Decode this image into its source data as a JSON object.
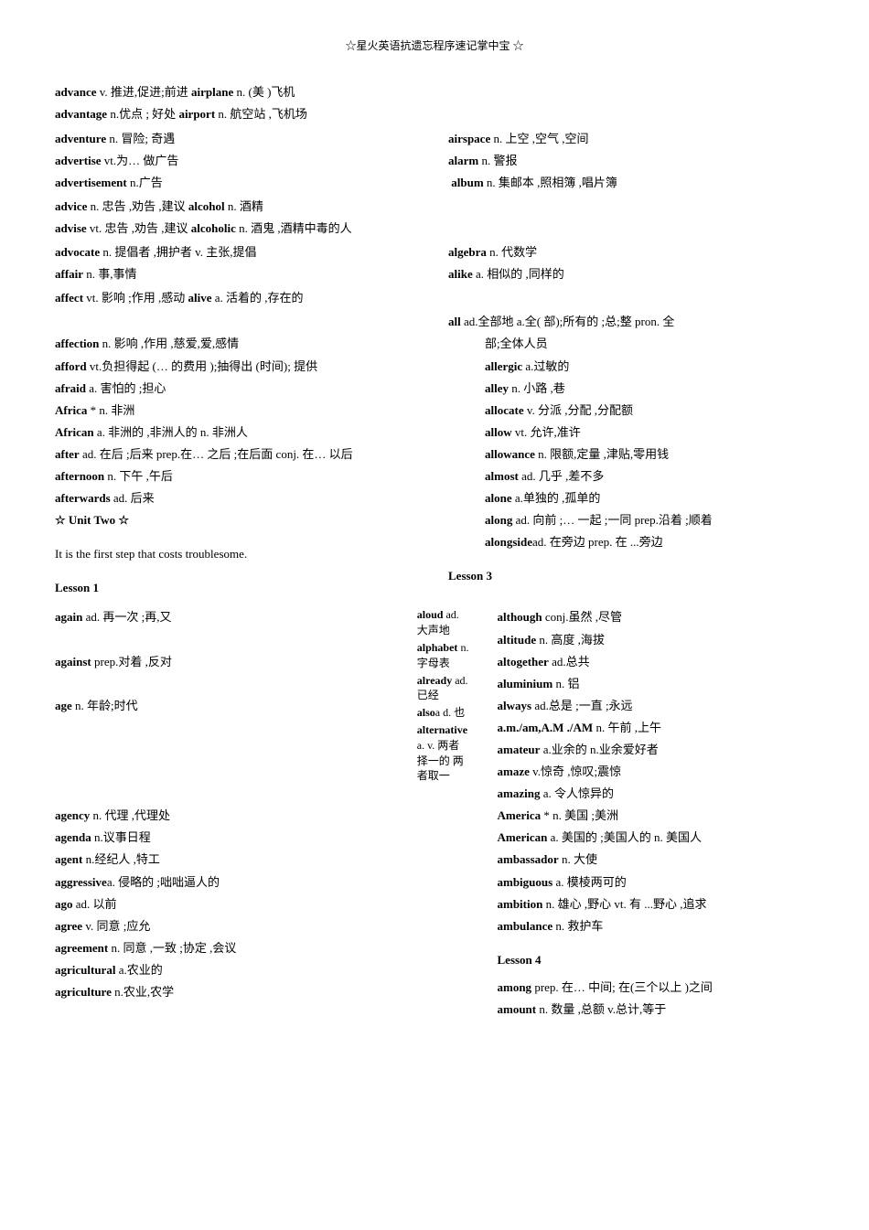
{
  "header": "☆星火英语抗遗忘程序速记掌中宝    ☆",
  "topEntries": [
    {
      "word": "advance",
      "def": " v. 推进,促进;前进 ",
      "word2": "airplane",
      "def2": " n. (美 )飞机"
    },
    {
      "word": "advantage",
      "def": " n.优点 ;  好处 ",
      "word2": "airport",
      "def2": "  n. 航空站 ,飞机场"
    }
  ],
  "leftCol1": [
    {
      "word": "adventure",
      "def": " n. 冒险; 奇遇"
    },
    {
      "word": "advertise",
      "def": " vt.为… 做广告"
    },
    {
      "word": "advertisement",
      "def": " n.广告"
    }
  ],
  "rightCol1": [
    {
      "word": "airspace",
      "def": " n. 上空 ,空气 ,空间"
    },
    {
      "word": "alarm",
      "def": " n.  警报"
    },
    {
      "word": "album",
      "def": " n. 集邮本 ,照相簿 ,唱片簿"
    }
  ],
  "fullRow1": [
    {
      "word": "advice",
      "def": " n. 忠告 ,劝告 ,建议 ",
      "word2": "alcohol",
      "def2": " n. 酒精"
    },
    {
      "word": "advise",
      "def": " vt. 忠告 ,劝告 ,建议 ",
      "word2": "alcoholic",
      "def2": " n. 酒鬼 ,酒精中毒的人"
    }
  ],
  "leftCol2": [
    {
      "word": "advocate",
      "def": " n. 提倡者 ,拥护者     v. 主张,提倡"
    },
    {
      "word": "affair",
      "def": " n. 事,事情"
    }
  ],
  "rightCol2": [
    {
      "word": "algebra",
      "def": " n. 代数学"
    },
    {
      "word": "alike",
      "def": " a. 相似的 ,同样的"
    }
  ],
  "fullRow2": [
    {
      "word": "affect",
      "def": " vt. 影响 ;作用 ,感动 ",
      "word2": "alive",
      "def2": " a. 活着的 ,存在的"
    }
  ],
  "allEntry": {
    "word": "all",
    "def": " ad.全部地  a.全( 部);所有的 ;总;整 pron. 全"
  },
  "leftCol3": [
    {
      "word": "affection",
      "def": " n. 影响 ,作用 ,慈爱,爱,感情"
    },
    {
      "word": "afford",
      "def": "  vt.负担得起 (… 的费用 );抽得出 (时间); 提供"
    },
    {
      "word": "afraid",
      "def": " a. 害怕的 ;担心"
    },
    {
      "word": "Africa",
      "def": " * n. 非洲"
    },
    {
      "word": "African",
      "def": " a. 非洲的 ,非洲人的  n. 非洲人"
    },
    {
      "word": "after",
      "def": " ad. 在后 ;后来  prep.在… 之后 ;在后面  conj. 在… 以后"
    },
    {
      "word": "afternoon",
      "def": " n. 下午 ,午后"
    },
    {
      "word": "afterwards",
      "def": " ad. 后来"
    }
  ],
  "rightCol3Indent": [
    {
      "text": "部;全体人员"
    },
    {
      "word": "allergic",
      "def": " a.过敏的"
    },
    {
      "word": "alley",
      "def": " n. 小路 ,巷"
    },
    {
      "word": "allocate",
      "def": " v. 分派 ,分配 ,分配额"
    },
    {
      "word": "allow",
      "def": " vt. 允许,准许"
    },
    {
      "word": "allowance",
      "def": " n. 限额,定量 ,津贴,零用钱"
    },
    {
      "word": "almost",
      "def": " ad. 几乎 ,差不多"
    },
    {
      "word": "alone",
      "def": " a.单独的 ,孤单的"
    },
    {
      "word": "along",
      "def": " ad. 向前 ;… 一起 ;一同 prep.沿着 ;顺着"
    },
    {
      "word": "alongside",
      "def": "ad. 在旁边 prep. 在 ...旁边"
    }
  ],
  "unitTwo": "☆ Unit Two ☆",
  "sentence": "It is the first step that costs troublesome.",
  "lesson1": "Lesson 1",
  "lesson3": "Lesson 3",
  "lesson4": "Lesson 4",
  "leftCol4": [
    {
      "word": "again",
      "def": " ad. 再一次 ;再,又"
    },
    {
      "spacer": true
    },
    {
      "word": "against",
      "def": " prep.对着 ,反对"
    },
    {
      "spacer": true
    },
    {
      "word": "age",
      "def": " n. 年龄;时代"
    },
    {
      "spacer": true
    },
    {
      "spacer": true
    },
    {
      "spacer": true
    },
    {
      "spacer": true
    },
    {
      "word": "agency",
      "def": " n. 代理 ,代理处"
    },
    {
      "word": "agenda",
      "def": " n.议事日程"
    },
    {
      "word": "agent",
      "def": " n.经纪人    ,特工"
    },
    {
      "word": "aggressive",
      "def": "a. 侵略的 ;咄咄逼人的"
    },
    {
      "word": "ago",
      "def": " ad. 以前"
    },
    {
      "word": "agree",
      "def": " v. 同意 ;应允"
    },
    {
      "word": "agreement",
      "def": " n. 同意 ,一致 ;协定 ,会议"
    },
    {
      "word": "agricultural",
      "def": " a.农业的"
    },
    {
      "word": "agriculture",
      "def": " n.农业,农学"
    }
  ],
  "midCol": [
    {
      "word": "aloud",
      "def": " ad. 大声地"
    },
    {
      "word": "alphabet",
      "def": " n.字母表"
    },
    {
      "word": "already",
      "def": " ad.已经"
    },
    {
      "word": "also",
      "def": "a d. 也"
    },
    {
      "word": "alternative",
      "def": " a. v. 两者择一的 两者取一"
    }
  ],
  "rightCol4": [
    {
      "word": "although",
      "def": " conj.虽然 ,尽管"
    },
    {
      "word": "altitude",
      "def": " n. 高度 ,海拔"
    },
    {
      "word": "altogether",
      "def": " ad.总共"
    },
    {
      "word": "aluminium",
      "def": "  n. 铝"
    },
    {
      "word": "always",
      "def": " ad.总是 ;一直 ;永远"
    },
    {
      "word": "a.m./am,A.M ./AM",
      "def": "  n. 午前 ,上午"
    },
    {
      "word": "amateur",
      "def": " a.业余的  n.业余爱好者"
    },
    {
      "word": "amaze",
      "def": " v.惊奇 ,惊叹;震惊"
    },
    {
      "word": "amazing",
      "def": " a. 令人惊异的"
    },
    {
      "word": "America",
      "def": " * n. 美国 ;美洲"
    },
    {
      "word": "American",
      "def": " a. 美国的 ;美国人的  n. 美国人"
    },
    {
      "word": "ambassador",
      "def": " n. 大使"
    },
    {
      "word": "ambiguous",
      "def": " a. 模棱两可的"
    },
    {
      "word": "ambition",
      "def": " n. 雄心 ,野心 vt. 有 ...野心 ,追求"
    },
    {
      "word": "ambulance",
      "def": " n. 救护车"
    }
  ],
  "lesson4Entries": [
    {
      "word": "among",
      "def": " prep. 在… 中间; 在(三个以上 )之间"
    },
    {
      "word": "amount",
      "def": " n. 数量 ,总额 v.总计,等于"
    }
  ]
}
